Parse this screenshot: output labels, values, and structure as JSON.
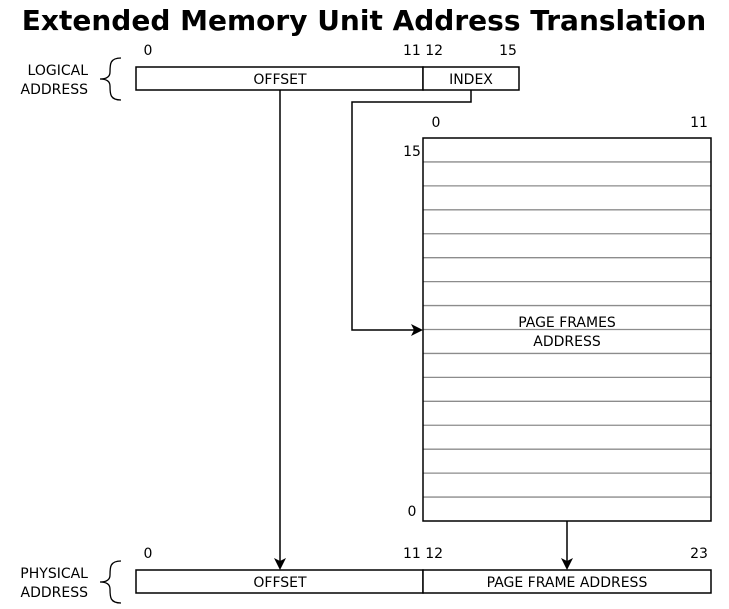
{
  "title": "Extended Memory Unit Address Translation",
  "logical": {
    "label_line1": "LOGICAL",
    "label_line2": "ADDRESS",
    "offset": "OFFSET",
    "index": "INDEX",
    "bit_0": "0",
    "bit_11_12": "11 12",
    "bit_15": "15"
  },
  "table": {
    "col_start": "0",
    "col_end": "11",
    "row_top": "15",
    "row_bottom": "0",
    "label_line1": "PAGE FRAMES",
    "label_line2": "ADDRESS",
    "row_count": 16
  },
  "physical": {
    "label_line1": "PHYSICAL",
    "label_line2": "ADDRESS",
    "offset": "OFFSET",
    "frame": "PAGE FRAME ADDRESS",
    "bit_0": "0",
    "bit_11_12": "11 12",
    "bit_23": "23"
  }
}
